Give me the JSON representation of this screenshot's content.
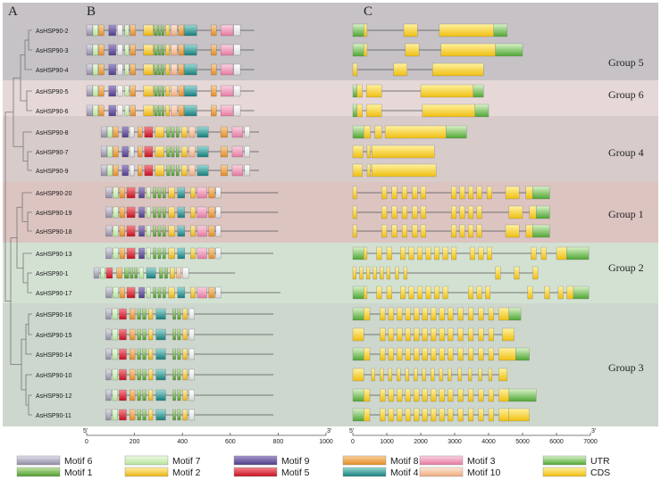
{
  "panels": {
    "a": "A",
    "b": "B",
    "c": "C"
  },
  "groups": [
    {
      "label": "Group 5",
      "color": "#c6c2c6"
    },
    {
      "label": "Group 6",
      "color": "#e5d8d7"
    },
    {
      "label": "Group 4",
      "color": "#d8cccb"
    },
    {
      "label": "Group 1",
      "color": "#dcc4c1"
    },
    {
      "label": "Group 2",
      "color": "#d3e1d3"
    },
    {
      "label": "Group 3",
      "color": "#cdd7cd"
    }
  ],
  "genes": [
    {
      "name": "AsHSP90-2",
      "group": 0
    },
    {
      "name": "AsHSP90-3",
      "group": 0
    },
    {
      "name": "AsHSP90-4",
      "group": 0
    },
    {
      "name": "AsHSP90-5",
      "group": 1
    },
    {
      "name": "AsHSP90-6",
      "group": 1
    },
    {
      "name": "AsHSP90-8",
      "group": 2
    },
    {
      "name": "AsHSP90-7",
      "group": 2
    },
    {
      "name": "AsHSP90-9",
      "group": 2
    },
    {
      "name": "AsHSP90-20",
      "group": 3
    },
    {
      "name": "AsHSP90-19",
      "group": 3
    },
    {
      "name": "AsHSP90-18",
      "group": 3
    },
    {
      "name": "AsHSP90-13",
      "group": 4
    },
    {
      "name": "AsHSP90-1",
      "group": 4
    },
    {
      "name": "AsHSP90-17",
      "group": 4
    },
    {
      "name": "AsHSP90-16",
      "group": 5
    },
    {
      "name": "AsHSP90-15",
      "group": 5
    },
    {
      "name": "AsHSP90-14",
      "group": 5
    },
    {
      "name": "AsHSP90-10",
      "group": 5
    },
    {
      "name": "AsHSP90-12",
      "group": 5
    },
    {
      "name": "AsHSP90-11",
      "group": 5
    }
  ],
  "axis_motif": {
    "prime5": "5'",
    "prime3": "3'",
    "ticks": [
      "0",
      "200",
      "400",
      "600",
      "800",
      "1000"
    ]
  },
  "axis_gene": {
    "prime5": "5'",
    "prime3": "3'",
    "ticks": [
      "0",
      "1000",
      "2000",
      "3000",
      "4000",
      "5000",
      "6000",
      "7000"
    ]
  },
  "legend": [
    {
      "label": "Motif 6",
      "color": "#a7a4b8"
    },
    {
      "label": "Motif 7",
      "color": "#cfeeb6"
    },
    {
      "label": "Motif 9",
      "color": "#7663a6"
    },
    {
      "label": "Motif 8",
      "color": "#f2ac55"
    },
    {
      "label": "Motif 3",
      "color": "#f4a2c0"
    },
    {
      "label": "UTR",
      "color": "#6cbf4e"
    },
    {
      "label": "Motif 1",
      "color": "#74b64c"
    },
    {
      "label": "Motif 2",
      "color": "#f3d03a"
    },
    {
      "label": "Motif 5",
      "color": "#e2313f"
    },
    {
      "label": "Motif 4",
      "color": "#2aa3a0"
    },
    {
      "label": "Motif 10",
      "color": "#f7c9a8"
    },
    {
      "label": "CDS",
      "color": "#f6cd2c"
    }
  ]
}
